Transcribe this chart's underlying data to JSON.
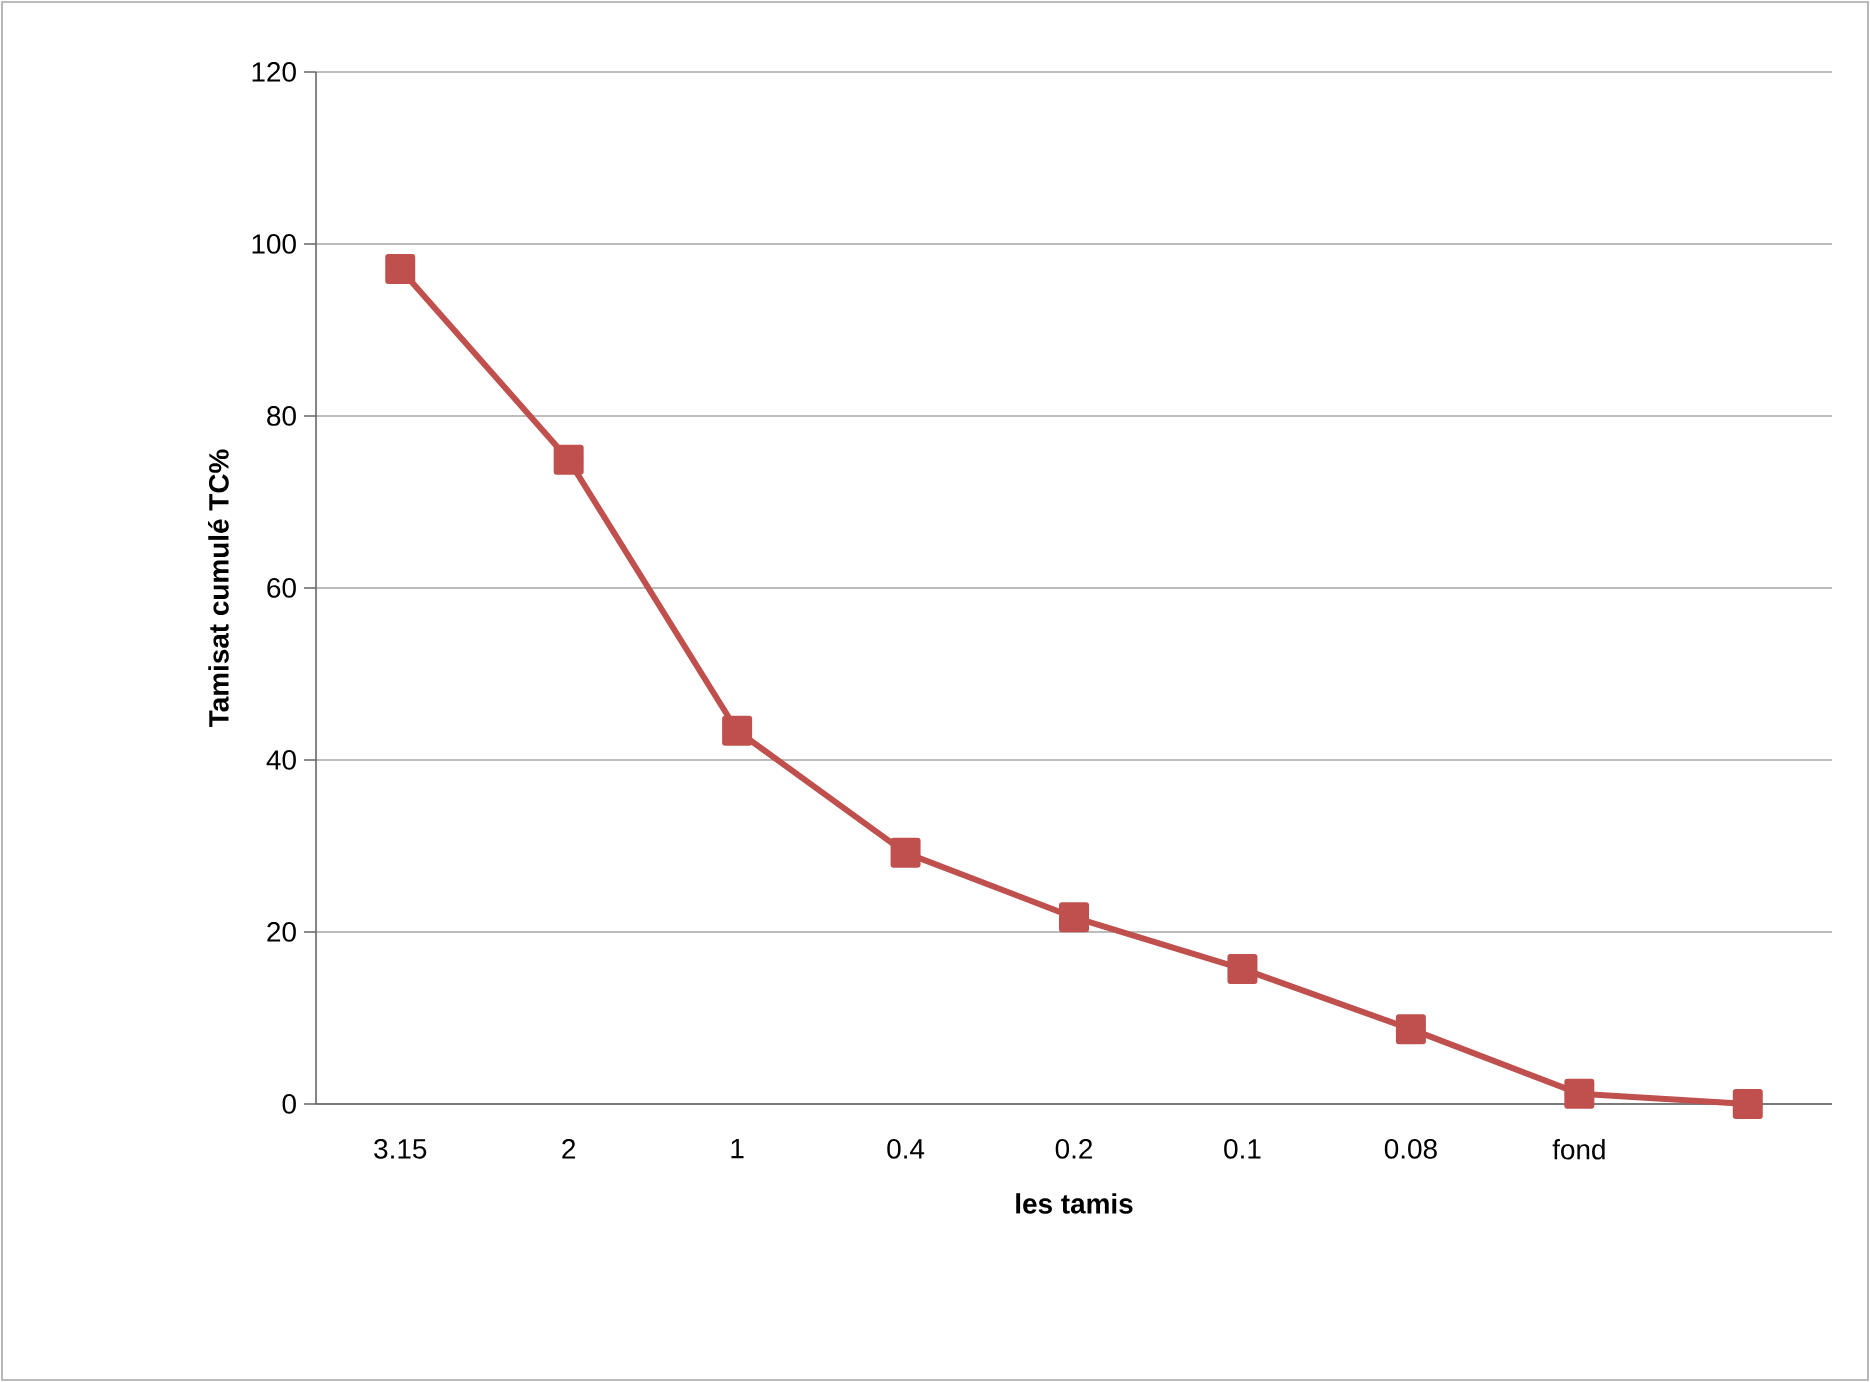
{
  "chart_data": {
    "type": "line",
    "xlabel": "les tamis",
    "ylabel": "Tamisat cumulé  TC%",
    "categories": [
      "3.15",
      "2",
      "1",
      "0.4",
      "0.2",
      "0.1",
      "0.08",
      "fond",
      null
    ],
    "series": [
      {
        "color": "#c0504d",
        "values": [
          97.1,
          74.9,
          43.4,
          29.2,
          21.7,
          15.7,
          8.7,
          1.2,
          0
        ]
      }
    ],
    "ylim": [
      0,
      120
    ],
    "yticks": [
      0,
      20,
      40,
      60,
      80,
      100,
      120
    ],
    "grid": "y",
    "marker": "square",
    "line_style": "solid"
  }
}
